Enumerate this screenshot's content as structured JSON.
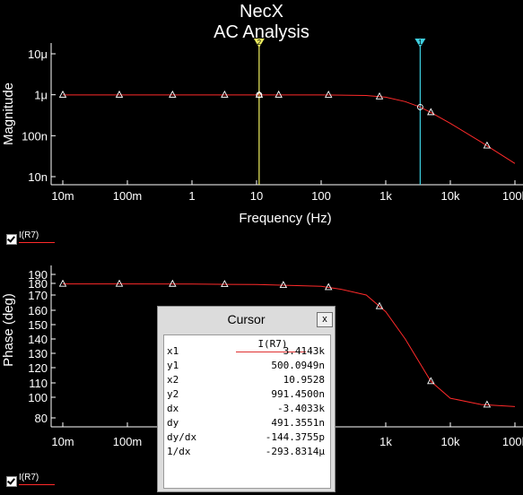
{
  "title": "NecX",
  "subtitle": "AC Analysis",
  "colors": {
    "trace": "#ff2a2a",
    "cursor1": "#3fd0e0",
    "cursor2": "#f0f060",
    "axis": "#ffffff"
  },
  "chart_data": [
    {
      "type": "line",
      "xscale": "log",
      "yscale": "log",
      "xlabel": "Frequency (Hz)",
      "ylabel": "Magnitude",
      "xticks": [
        "10m",
        "100m",
        "1",
        "10",
        "100",
        "1k",
        "10k",
        "100k"
      ],
      "yticks": [
        "10μ",
        "1μ",
        "100n",
        "10n"
      ],
      "xlim": [
        0.01,
        100000
      ],
      "ylim": [
        1e-08,
        1e-05
      ],
      "series": [
        {
          "name": "I(R7)",
          "x": [
            0.01,
            0.1,
            1,
            10,
            100,
            500,
            1000,
            2000,
            3414,
            5000,
            10000,
            30000,
            100000
          ],
          "y": [
            9.9e-07,
            9.9e-07,
            9.9e-07,
            9.9e-07,
            9.9e-07,
            9.6e-07,
            8.7e-07,
            6.8e-07,
            5e-07,
            3.7e-07,
            2e-07,
            7e-08,
            2.1e-08
          ],
          "markers_x": [
            0.01,
            0.075,
            0.5,
            3.2,
            11,
            22,
            130,
            800,
            5000,
            37000
          ]
        }
      ],
      "cursors": [
        {
          "label": "1",
          "x": 3414.3,
          "color": "cyan"
        },
        {
          "label": "2",
          "x": 10.9528,
          "color": "yellow"
        }
      ]
    },
    {
      "type": "line",
      "xscale": "log",
      "xlabel": "",
      "ylabel": "Phase (deg)",
      "xticks": [
        "10m",
        "100m",
        "1",
        "10",
        "100",
        "1k",
        "10k",
        "100k"
      ],
      "yticks": [
        "190",
        "180",
        "170",
        "160",
        "150",
        "140",
        "130",
        "120",
        "110",
        "100",
        "80"
      ],
      "xlim": [
        0.01,
        100000
      ],
      "ylim": [
        80,
        190
      ],
      "series": [
        {
          "name": "I(R7)",
          "x": [
            0.01,
            0.1,
            1,
            10,
            100,
            200,
            500,
            1000,
            2000,
            5000,
            10000,
            30000,
            100000
          ],
          "y": [
            179.5,
            179.5,
            179.4,
            179,
            177.5,
            175,
            170,
            159,
            140,
            111,
            99,
            93,
            91
          ],
          "markers_x": [
            0.01,
            0.075,
            0.5,
            3.2,
            26,
            130,
            800,
            5000,
            37000
          ]
        }
      ]
    }
  ],
  "legend": {
    "label": "I(R7)"
  },
  "cursor_window": {
    "title": "Cursor",
    "close": "x",
    "column": "I(R7)",
    "rows": [
      {
        "k": "x1",
        "v": "3.4143k"
      },
      {
        "k": "y1",
        "v": "500.0949n"
      },
      {
        "k": "x2",
        "v": "10.9528"
      },
      {
        "k": "y2",
        "v": "991.4500n"
      },
      {
        "k": "dx",
        "v": "-3.4033k"
      },
      {
        "k": "dy",
        "v": "491.3551n"
      },
      {
        "k": "dy/dx",
        "v": "-144.3755p"
      },
      {
        "k": "1/dx",
        "v": "-293.8314μ"
      }
    ]
  }
}
